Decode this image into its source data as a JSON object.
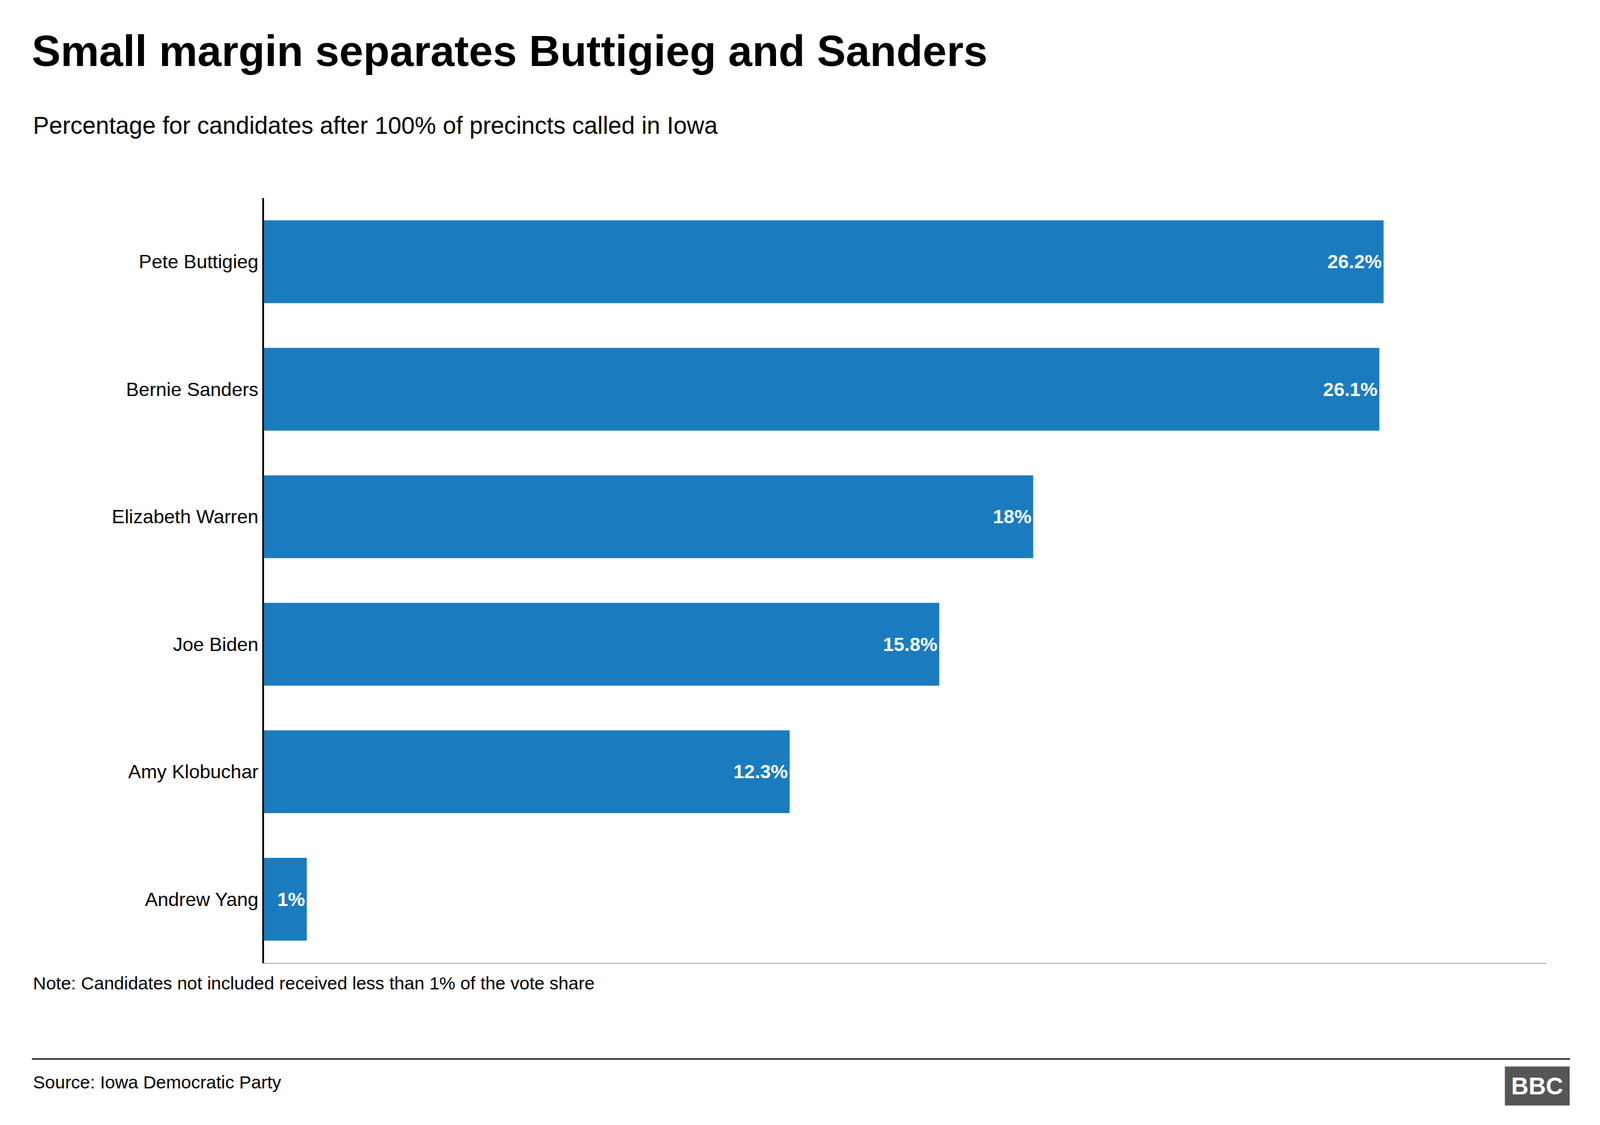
{
  "chart_data": {
    "type": "bar",
    "orientation": "horizontal",
    "title": "Small margin separates Buttigieg and Sanders",
    "subtitle": "Percentage for candidates after 100% of precincts called in Iowa",
    "categories": [
      "Pete Buttigieg",
      "Bernie Sanders",
      "Elizabeth Warren",
      "Joe Biden",
      "Amy Klobuchar",
      "Andrew Yang"
    ],
    "values": [
      26.2,
      26.1,
      18.0,
      15.8,
      12.3,
      1.0
    ],
    "value_labels": [
      "26.2%",
      "26.1%",
      "18%",
      "15.8%",
      "12.3%",
      "1%"
    ],
    "data_labels": true,
    "color": "#1a7bbf",
    "xlim": [
      0,
      30
    ],
    "grid": false,
    "tick_labels": "y",
    "annotations": [
      "Note: Candidates not included received less than 1% of the vote share",
      "Source: Iowa Democratic Party",
      "BBC"
    ]
  }
}
